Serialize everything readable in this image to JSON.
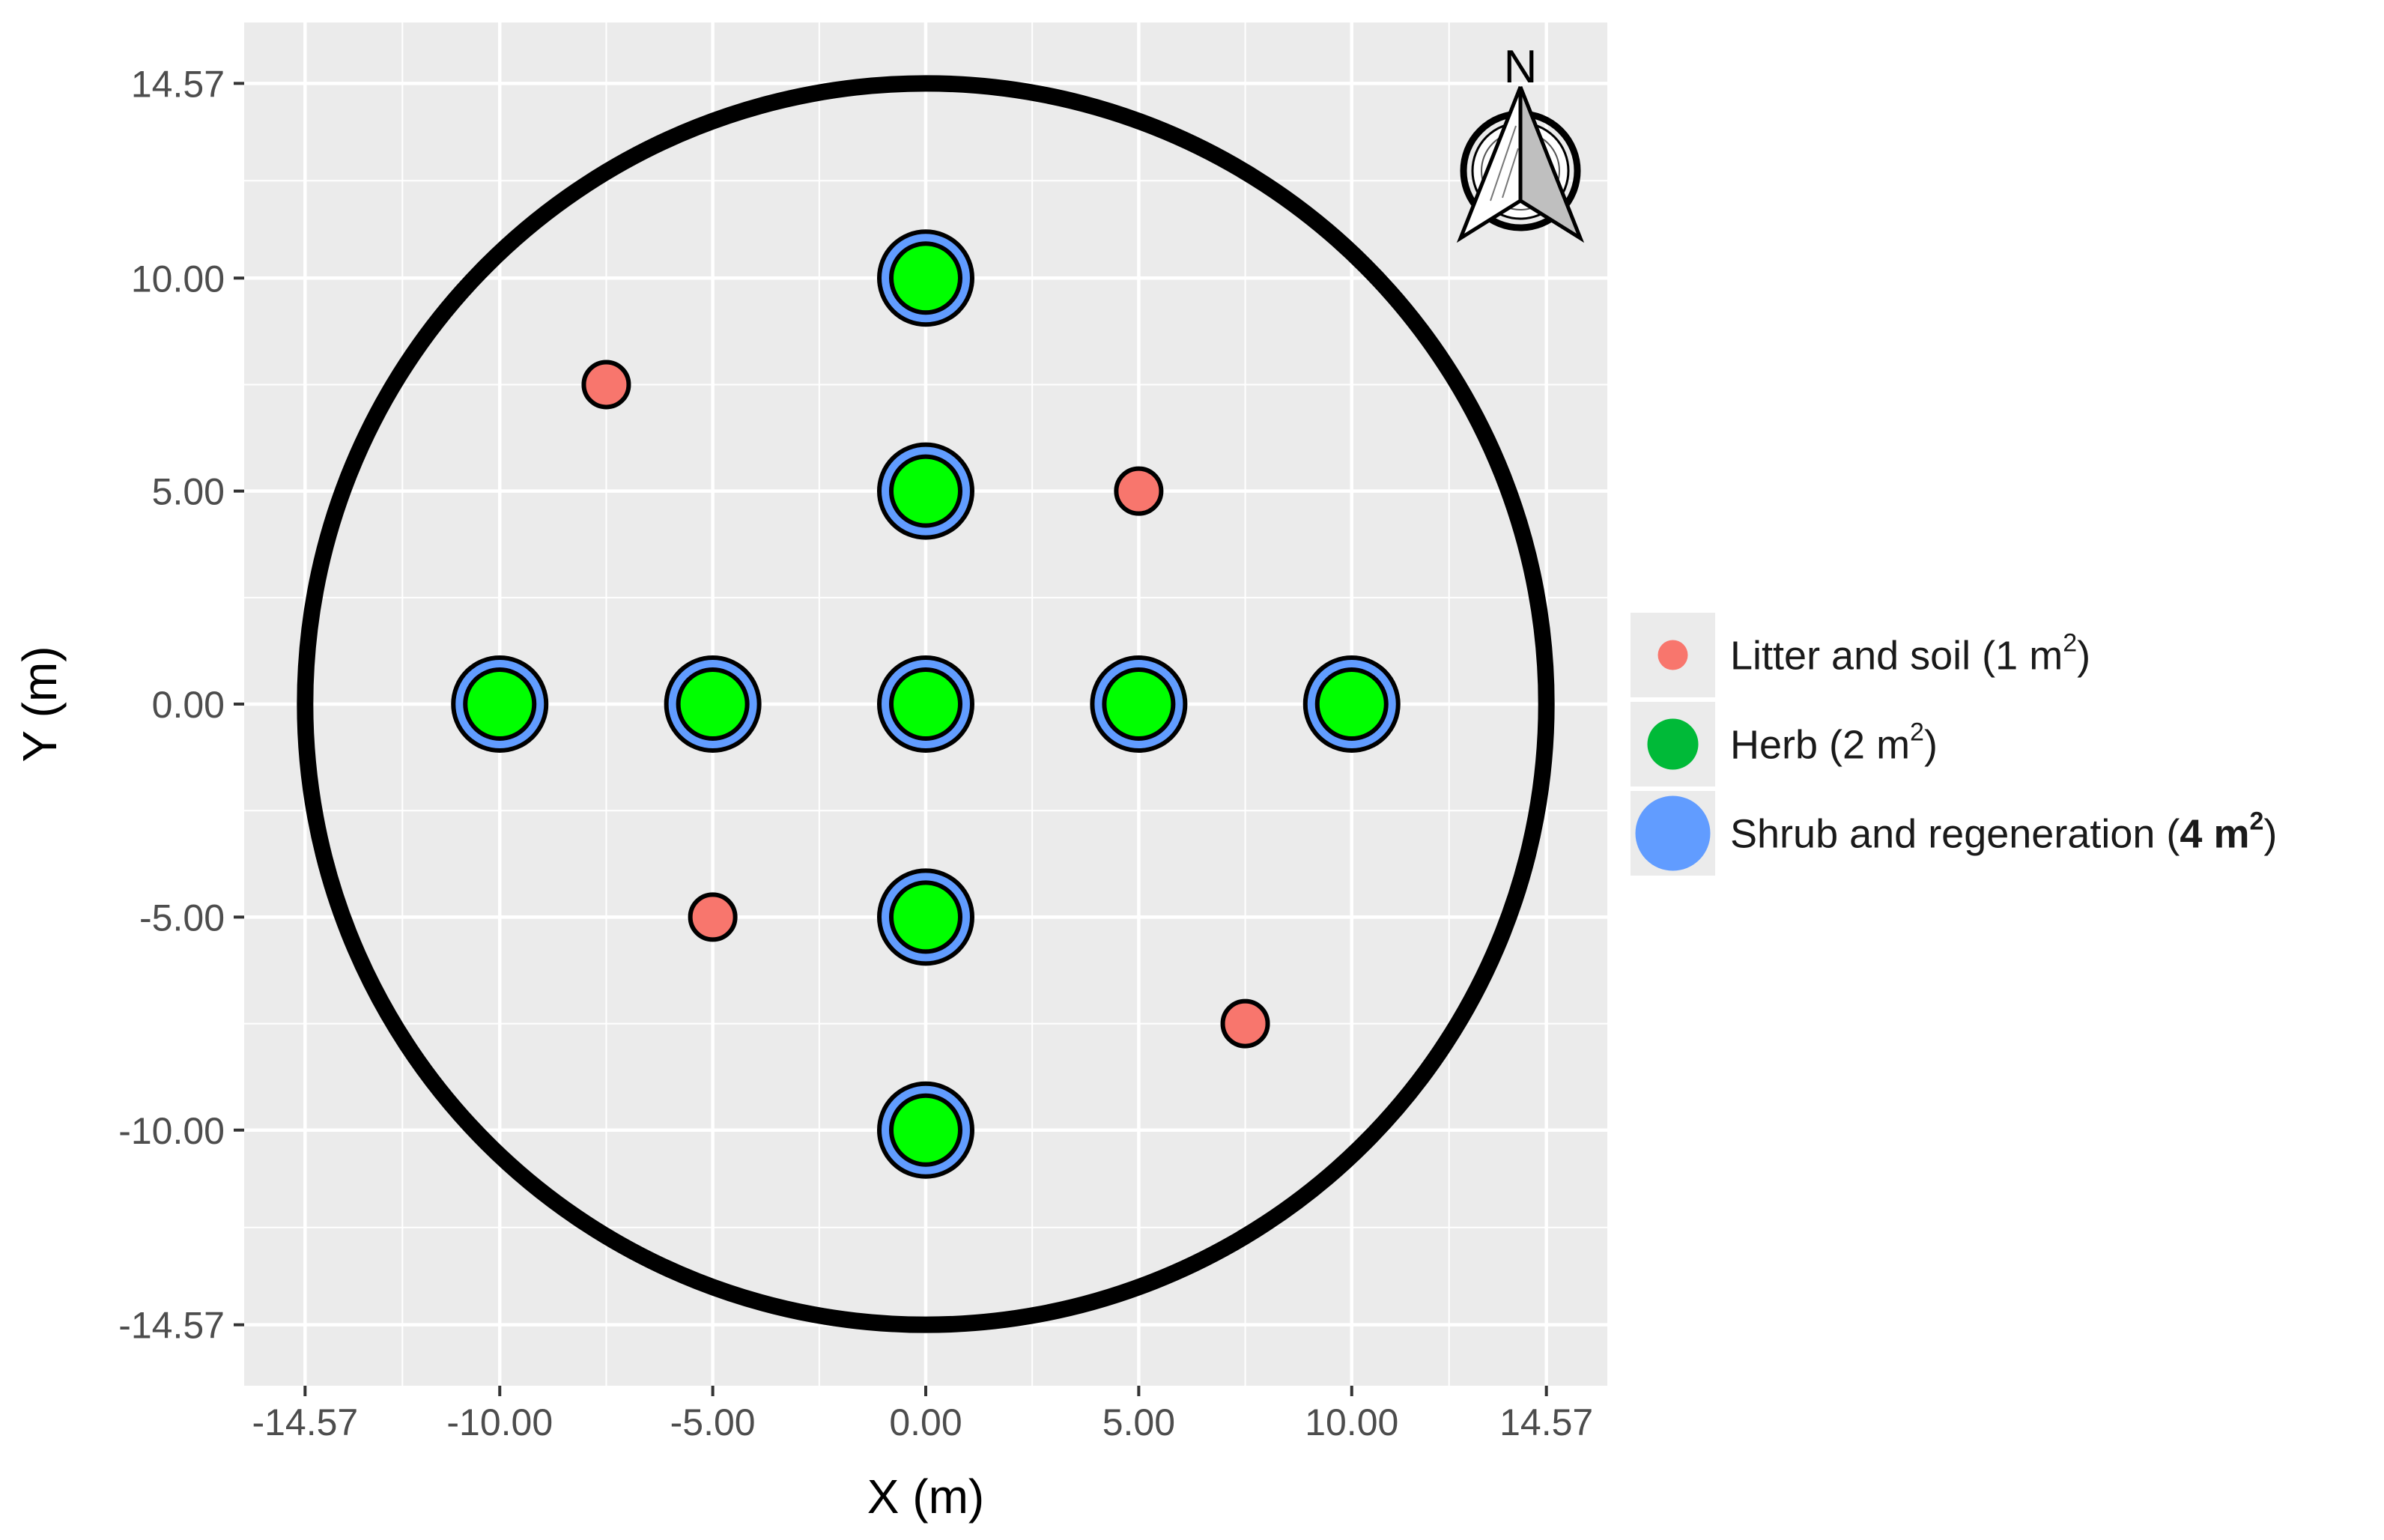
{
  "chart_data": {
    "type": "scatter",
    "title": "",
    "xlabel": "X (m)",
    "ylabel": "Y (m)",
    "xlim": [
      -16,
      16
    ],
    "ylim": [
      -16,
      16
    ],
    "x_ticks": [
      -14.57,
      -10,
      -5,
      0,
      5,
      10,
      14.57
    ],
    "x_tick_labels": [
      "-14.57",
      "-10.00",
      "-5.00",
      "0.00",
      "5.00",
      "10.00",
      "14.57"
    ],
    "y_ticks": [
      -14.57,
      -10,
      -5,
      0,
      5,
      10,
      14.57
    ],
    "y_tick_labels": [
      "-14.57",
      "-10.00",
      "-5.00",
      "0.00",
      "5.00",
      "10.00",
      "14.57"
    ],
    "grid": true,
    "plot_boundary": {
      "shape": "circle",
      "center": [
        0,
        0
      ],
      "radius": 14.57
    },
    "legend_position": "right",
    "north_arrow": {
      "label": "N",
      "position": "top-right"
    },
    "series": [
      {
        "name": "Litter and soil (1 m",
        "superscript": "2",
        "suffix": ")",
        "color": "#F8766D",
        "area_m2": 1,
        "points": [
          [
            -7.5,
            7.5
          ],
          [
            5,
            5
          ],
          [
            -5,
            -5
          ],
          [
            7.5,
            -7.5
          ]
        ]
      },
      {
        "name": "Herb (2 m",
        "superscript": "2",
        "suffix": ")",
        "color": "#00FF00",
        "legend_color": "#00BA38",
        "area_m2": 2,
        "points": [
          [
            0,
            10
          ],
          [
            0,
            5
          ],
          [
            -10,
            0
          ],
          [
            -5,
            0
          ],
          [
            0,
            0
          ],
          [
            5,
            0
          ],
          [
            10,
            0
          ],
          [
            0,
            -5
          ],
          [
            0,
            -10
          ]
        ]
      },
      {
        "name": "Shrub and regeneration (",
        "bold_part": "4 m",
        "superscript": "2",
        "suffix": ")",
        "color": "#619CFF",
        "area_m2": 4,
        "points": [
          [
            0,
            10
          ],
          [
            0,
            5
          ],
          [
            -10,
            0
          ],
          [
            -5,
            0
          ],
          [
            0,
            0
          ],
          [
            5,
            0
          ],
          [
            10,
            0
          ],
          [
            0,
            -5
          ],
          [
            0,
            -10
          ]
        ]
      }
    ]
  }
}
